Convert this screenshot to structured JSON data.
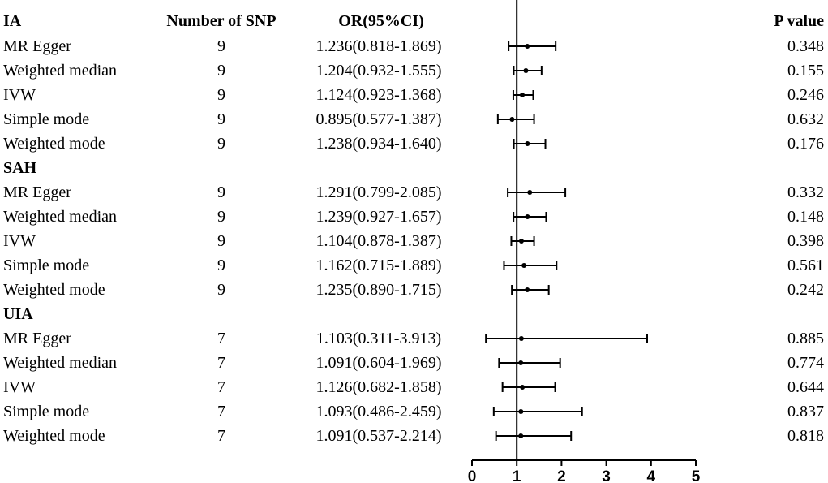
{
  "headers": {
    "col1": "IA",
    "col2": "Number of SNP",
    "col3": "OR(95%CI)",
    "col4": "P value"
  },
  "chart_data": {
    "type": "forest",
    "title": "",
    "xlabel": "",
    "ylabel": "",
    "xlim": [
      0,
      5
    ],
    "x_ticks": [
      0,
      1,
      2,
      3,
      4,
      5
    ],
    "reference_line": 1,
    "groups": [
      {
        "name": "IA",
        "show_label": false,
        "rows": [
          {
            "method": "MR Egger",
            "n_snp": "9",
            "or_text": "1.236(0.818-1.869)",
            "p": "0.348",
            "or": 1.236,
            "lo": 0.818,
            "hi": 1.869
          },
          {
            "method": "Weighted median",
            "n_snp": "9",
            "or_text": "1.204(0.932-1.555)",
            "p": "0.155",
            "or": 1.204,
            "lo": 0.932,
            "hi": 1.555
          },
          {
            "method": "IVW",
            "n_snp": "9",
            "or_text": "1.124(0.923-1.368)",
            "p": "0.246",
            "or": 1.124,
            "lo": 0.923,
            "hi": 1.368
          },
          {
            "method": "Simple mode",
            "n_snp": "9",
            "or_text": "0.895(0.577-1.387)",
            "p": "0.632",
            "or": 0.895,
            "lo": 0.577,
            "hi": 1.387
          },
          {
            "method": "Weighted mode",
            "n_snp": "9",
            "or_text": "1.238(0.934-1.640)",
            "p": "0.176",
            "or": 1.238,
            "lo": 0.934,
            "hi": 1.64
          }
        ]
      },
      {
        "name": "SAH",
        "show_label": true,
        "rows": [
          {
            "method": "MR Egger",
            "n_snp": "9",
            "or_text": "1.291(0.799-2.085)",
            "p": "0.332",
            "or": 1.291,
            "lo": 0.799,
            "hi": 2.085
          },
          {
            "method": "Weighted median",
            "n_snp": "9",
            "or_text": "1.239(0.927-1.657)",
            "p": "0.148",
            "or": 1.239,
            "lo": 0.927,
            "hi": 1.657
          },
          {
            "method": "IVW",
            "n_snp": "9",
            "or_text": "1.104(0.878-1.387)",
            "p": "0.398",
            "or": 1.104,
            "lo": 0.878,
            "hi": 1.387
          },
          {
            "method": "Simple mode",
            "n_snp": "9",
            "or_text": "1.162(0.715-1.889)",
            "p": "0.561",
            "or": 1.162,
            "lo": 0.715,
            "hi": 1.889
          },
          {
            "method": "Weighted mode",
            "n_snp": "9",
            "or_text": "1.235(0.890-1.715)",
            "p": "0.242",
            "or": 1.235,
            "lo": 0.89,
            "hi": 1.715
          }
        ]
      },
      {
        "name": "UIA",
        "show_label": true,
        "rows": [
          {
            "method": "MR Egger",
            "n_snp": "7",
            "or_text": "1.103(0.311-3.913)",
            "p": "0.885",
            "or": 1.103,
            "lo": 0.311,
            "hi": 3.913
          },
          {
            "method": "Weighted median",
            "n_snp": "7",
            "or_text": "1.091(0.604-1.969)",
            "p": "0.774",
            "or": 1.091,
            "lo": 0.604,
            "hi": 1.969
          },
          {
            "method": "IVW",
            "n_snp": "7",
            "or_text": "1.126(0.682-1.858)",
            "p": "0.644",
            "or": 1.126,
            "lo": 0.682,
            "hi": 1.858
          },
          {
            "method": "Simple mode",
            "n_snp": "7",
            "or_text": "1.093(0.486-2.459)",
            "p": "0.837",
            "or": 1.093,
            "lo": 0.486,
            "hi": 2.459
          },
          {
            "method": "Weighted mode",
            "n_snp": "7",
            "or_text": "1.091(0.537-2.214)",
            "p": "0.818",
            "or": 1.091,
            "lo": 0.537,
            "hi": 2.214
          }
        ]
      }
    ]
  }
}
